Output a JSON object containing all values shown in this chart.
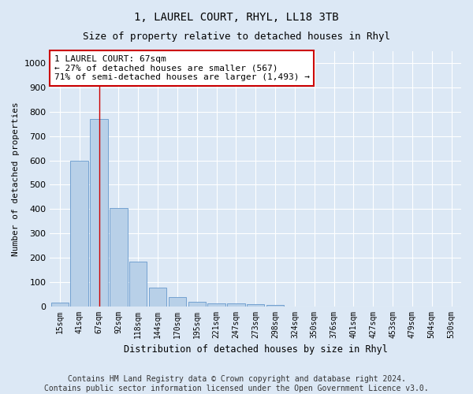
{
  "title": "1, LAUREL COURT, RHYL, LL18 3TB",
  "subtitle": "Size of property relative to detached houses in Rhyl",
  "xlabel": "Distribution of detached houses by size in Rhyl",
  "ylabel": "Number of detached properties",
  "categories": [
    "15sqm",
    "41sqm",
    "67sqm",
    "92sqm",
    "118sqm",
    "144sqm",
    "170sqm",
    "195sqm",
    "221sqm",
    "247sqm",
    "273sqm",
    "298sqm",
    "324sqm",
    "350sqm",
    "376sqm",
    "401sqm",
    "427sqm",
    "453sqm",
    "479sqm",
    "504sqm",
    "530sqm"
  ],
  "values": [
    15,
    600,
    770,
    405,
    185,
    78,
    38,
    18,
    13,
    13,
    8,
    6,
    0,
    0,
    0,
    0,
    0,
    0,
    0,
    0,
    0
  ],
  "bar_color": "#b8d0e8",
  "bar_edge_color": "#6699cc",
  "highlight_bar_index": 2,
  "highlight_line_color": "#cc0000",
  "annotation_text": "1 LAUREL COURT: 67sqm\n← 27% of detached houses are smaller (567)\n71% of semi-detached houses are larger (1,493) →",
  "annotation_box_color": "#ffffff",
  "annotation_box_edge": "#cc0000",
  "ylim": [
    0,
    1050
  ],
  "yticks": [
    0,
    100,
    200,
    300,
    400,
    500,
    600,
    700,
    800,
    900,
    1000
  ],
  "footer": "Contains HM Land Registry data © Crown copyright and database right 2024.\nContains public sector information licensed under the Open Government Licence v3.0.",
  "bg_color": "#dce8f5",
  "plot_bg_color": "#dce8f5",
  "grid_color": "#ffffff",
  "title_fontsize": 10,
  "subtitle_fontsize": 9,
  "annotation_fontsize": 8,
  "footer_fontsize": 7
}
